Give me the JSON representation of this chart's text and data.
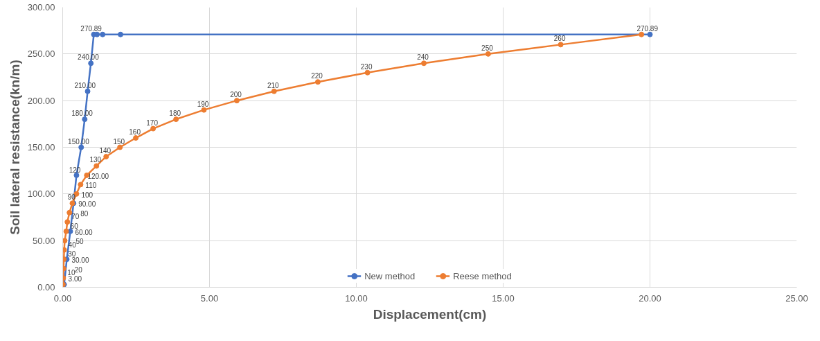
{
  "chart_data": {
    "type": "line",
    "xlabel": "Displacement(cm)",
    "ylabel": "Soil lateral resistance(kn/m)",
    "xlim": [
      0,
      25
    ],
    "ylim": [
      0,
      300
    ],
    "xticks": [
      {
        "value": 0,
        "label": "0.00"
      },
      {
        "value": 5,
        "label": "5.00"
      },
      {
        "value": 10,
        "label": "10.00"
      },
      {
        "value": 15,
        "label": "15.00"
      },
      {
        "value": 20,
        "label": "20.00"
      },
      {
        "value": 25,
        "label": "25.00"
      }
    ],
    "yticks": [
      {
        "value": 0,
        "label": "0.00"
      },
      {
        "value": 50,
        "label": "50.00"
      },
      {
        "value": 100,
        "label": "100.00"
      },
      {
        "value": 150,
        "label": "150.00"
      },
      {
        "value": 200,
        "label": "200.00"
      },
      {
        "value": 250,
        "label": "250.00"
      },
      {
        "value": 300,
        "label": "300.00"
      }
    ],
    "grid": true,
    "legend": "bottom",
    "marker": "circle",
    "line_style": "solid",
    "series": [
      {
        "name": "New method",
        "color": "#4472c4",
        "x": [
          0.05,
          0.14,
          0.26,
          0.37,
          0.47,
          0.63,
          0.75,
          0.85,
          0.96,
          1.06,
          1.17,
          1.36,
          1.97,
          20.0
        ],
        "values": [
          3,
          30,
          60,
          90,
          120,
          150,
          180,
          210,
          240,
          270.89,
          270.89,
          270.89,
          270.89,
          270.89
        ],
        "value_labels": [
          "3.00",
          "30.00",
          "60.00",
          "90.00",
          "120.00",
          "150.00",
          "180.00",
          "210.00",
          "240.00",
          "270.89",
          null,
          null,
          null,
          "270.89"
        ]
      },
      {
        "name": "Reese method",
        "color": "#ed7d31",
        "x": [
          0.01,
          0.02,
          0.03,
          0.04,
          0.05,
          0.07,
          0.12,
          0.16,
          0.23,
          0.33,
          0.47,
          0.61,
          0.82,
          1.15,
          1.48,
          1.95,
          2.49,
          3.08,
          3.86,
          4.81,
          5.93,
          7.2,
          8.69,
          10.38,
          12.3,
          14.49,
          16.96,
          19.71
        ],
        "values": [
          3,
          10,
          20,
          30,
          40,
          50,
          60,
          70,
          80,
          90,
          100,
          110,
          120,
          130,
          140,
          150,
          160,
          170,
          180,
          190,
          200,
          210,
          220,
          230,
          240,
          250,
          260,
          270.89
        ],
        "value_labels": [
          null,
          "10",
          "20",
          "30",
          "40",
          "50",
          "60",
          "70",
          "80",
          "90",
          "100",
          "110",
          "120",
          "130",
          "140",
          "150",
          "160",
          "170",
          "180",
          "190",
          "200",
          "210",
          "220",
          "230",
          "240",
          "250",
          "260",
          null
        ]
      }
    ]
  }
}
